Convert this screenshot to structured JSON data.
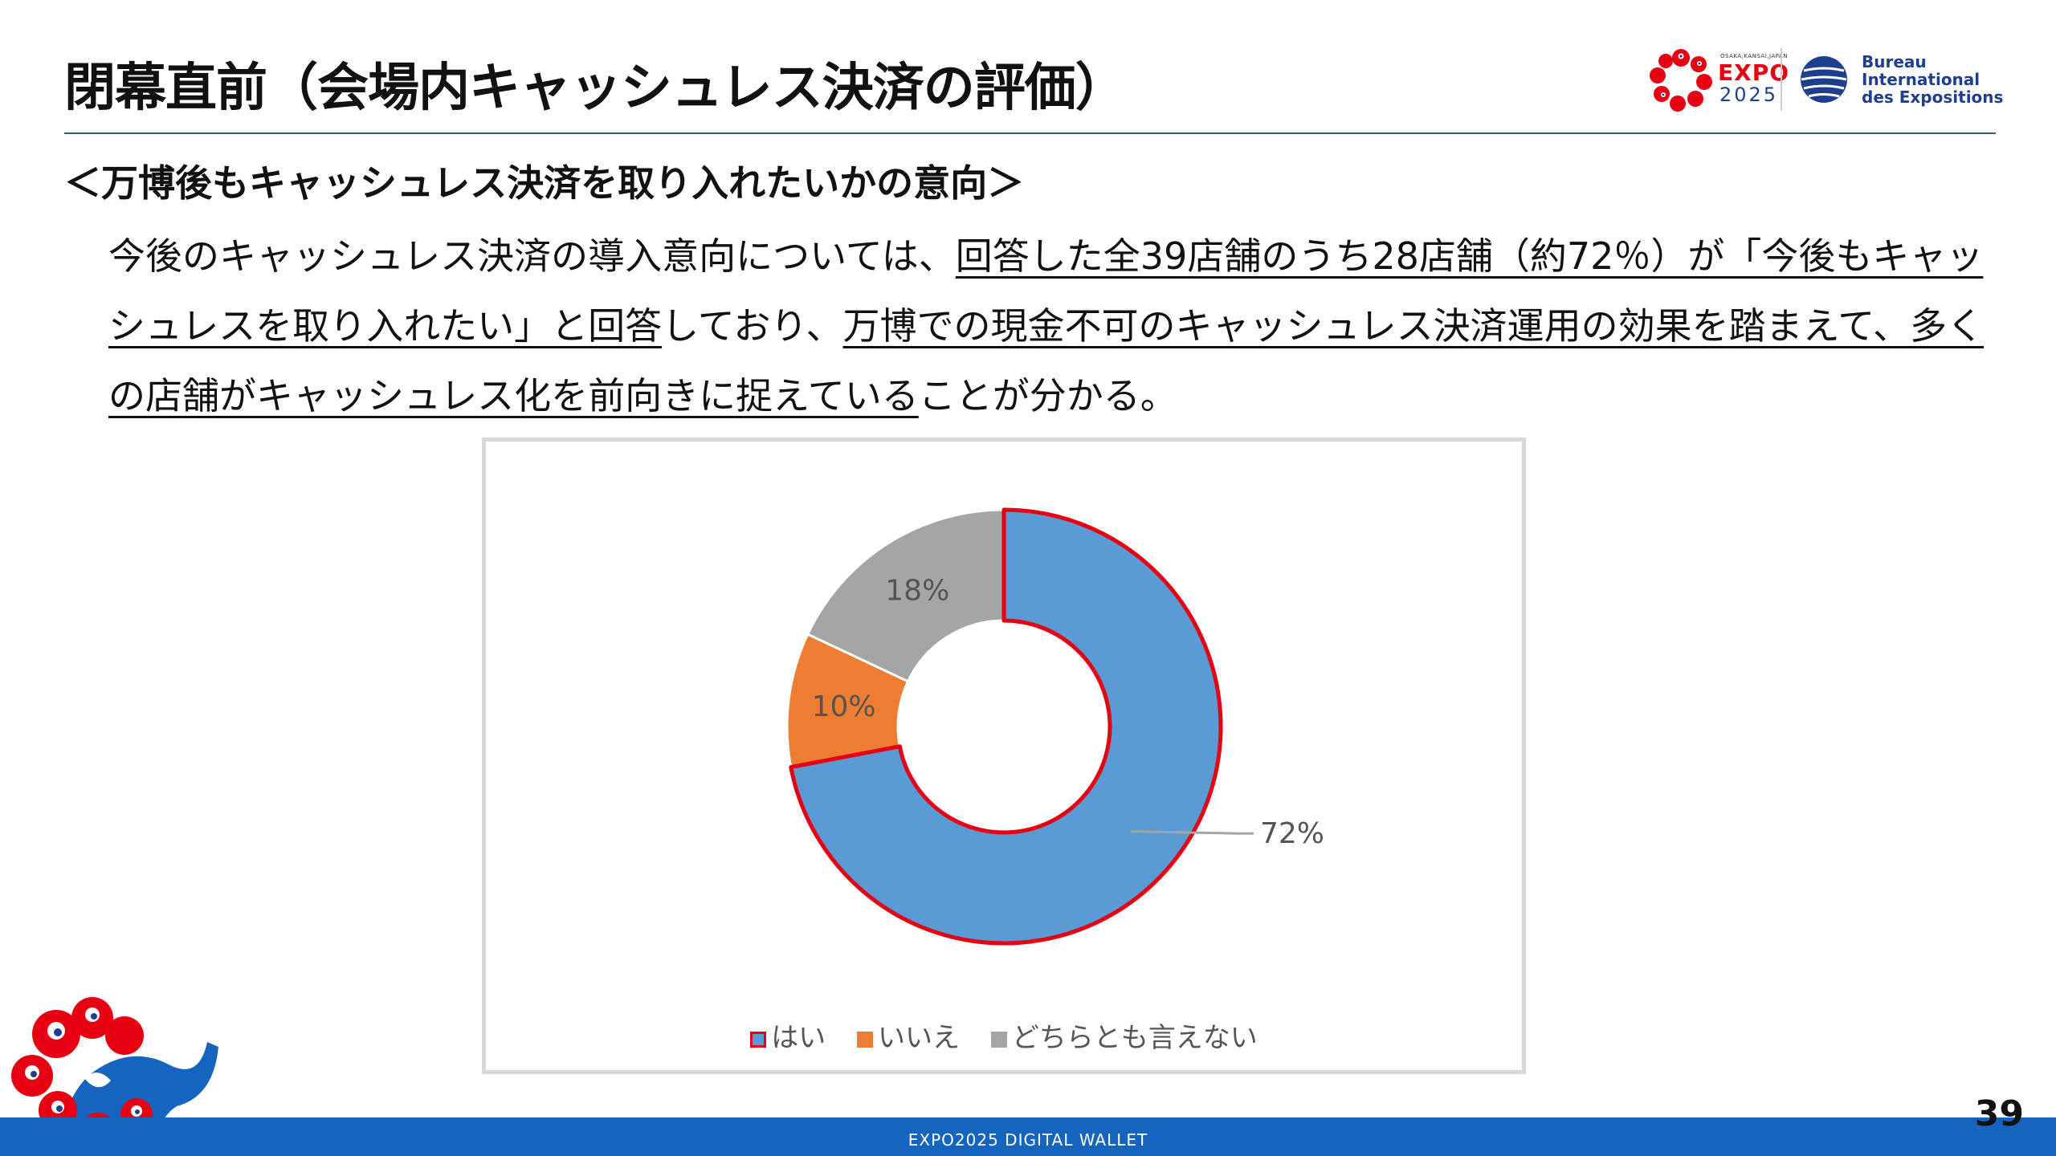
{
  "header": {
    "title": "閉幕直前（会場内キャッシュレス決済の評価）",
    "expo_logo": {
      "small_text": "OSAKA,KANSAI,JAPAN",
      "word": "EXPO",
      "year": "2025"
    },
    "bie_logo": {
      "lines": [
        "Bureau",
        "International",
        "des Expositions"
      ]
    }
  },
  "subheading": "＜万博後もキャッシュレス決済を取り入れたいかの意向＞",
  "body": {
    "seg1": "今後のキャッシュレス決済の導入意向については、",
    "seg2": "回答した全39店舗のうち28店舗（約72％）が「今後もキャッシュレスを取り入れたい」と回答",
    "seg3": "しており、",
    "seg4": "万博での現金不可のキャッシュレス決済運用の効果を踏まえて、多くの店舗がキャッシュレス化を前向きに捉えている",
    "seg5": "ことが分かる。"
  },
  "chart_data": {
    "type": "pie",
    "variant": "donut",
    "categories": [
      "はい",
      "いいえ",
      "どちらとも言えない"
    ],
    "values": [
      72,
      10,
      18
    ],
    "data_labels": [
      "72%",
      "10%",
      "18%"
    ],
    "colors": [
      "#5b9bd5",
      "#ed7d31",
      "#a5a5a5"
    ],
    "highlight": {
      "category": "はい",
      "outline_color": "#e60012"
    },
    "legend_position": "bottom",
    "start_angle_deg": 0,
    "direction": "clockwise"
  },
  "footer": {
    "text": "EXPO2025 DIGITAL WALLET",
    "page_number": "39",
    "band_color": "#1565c0"
  }
}
